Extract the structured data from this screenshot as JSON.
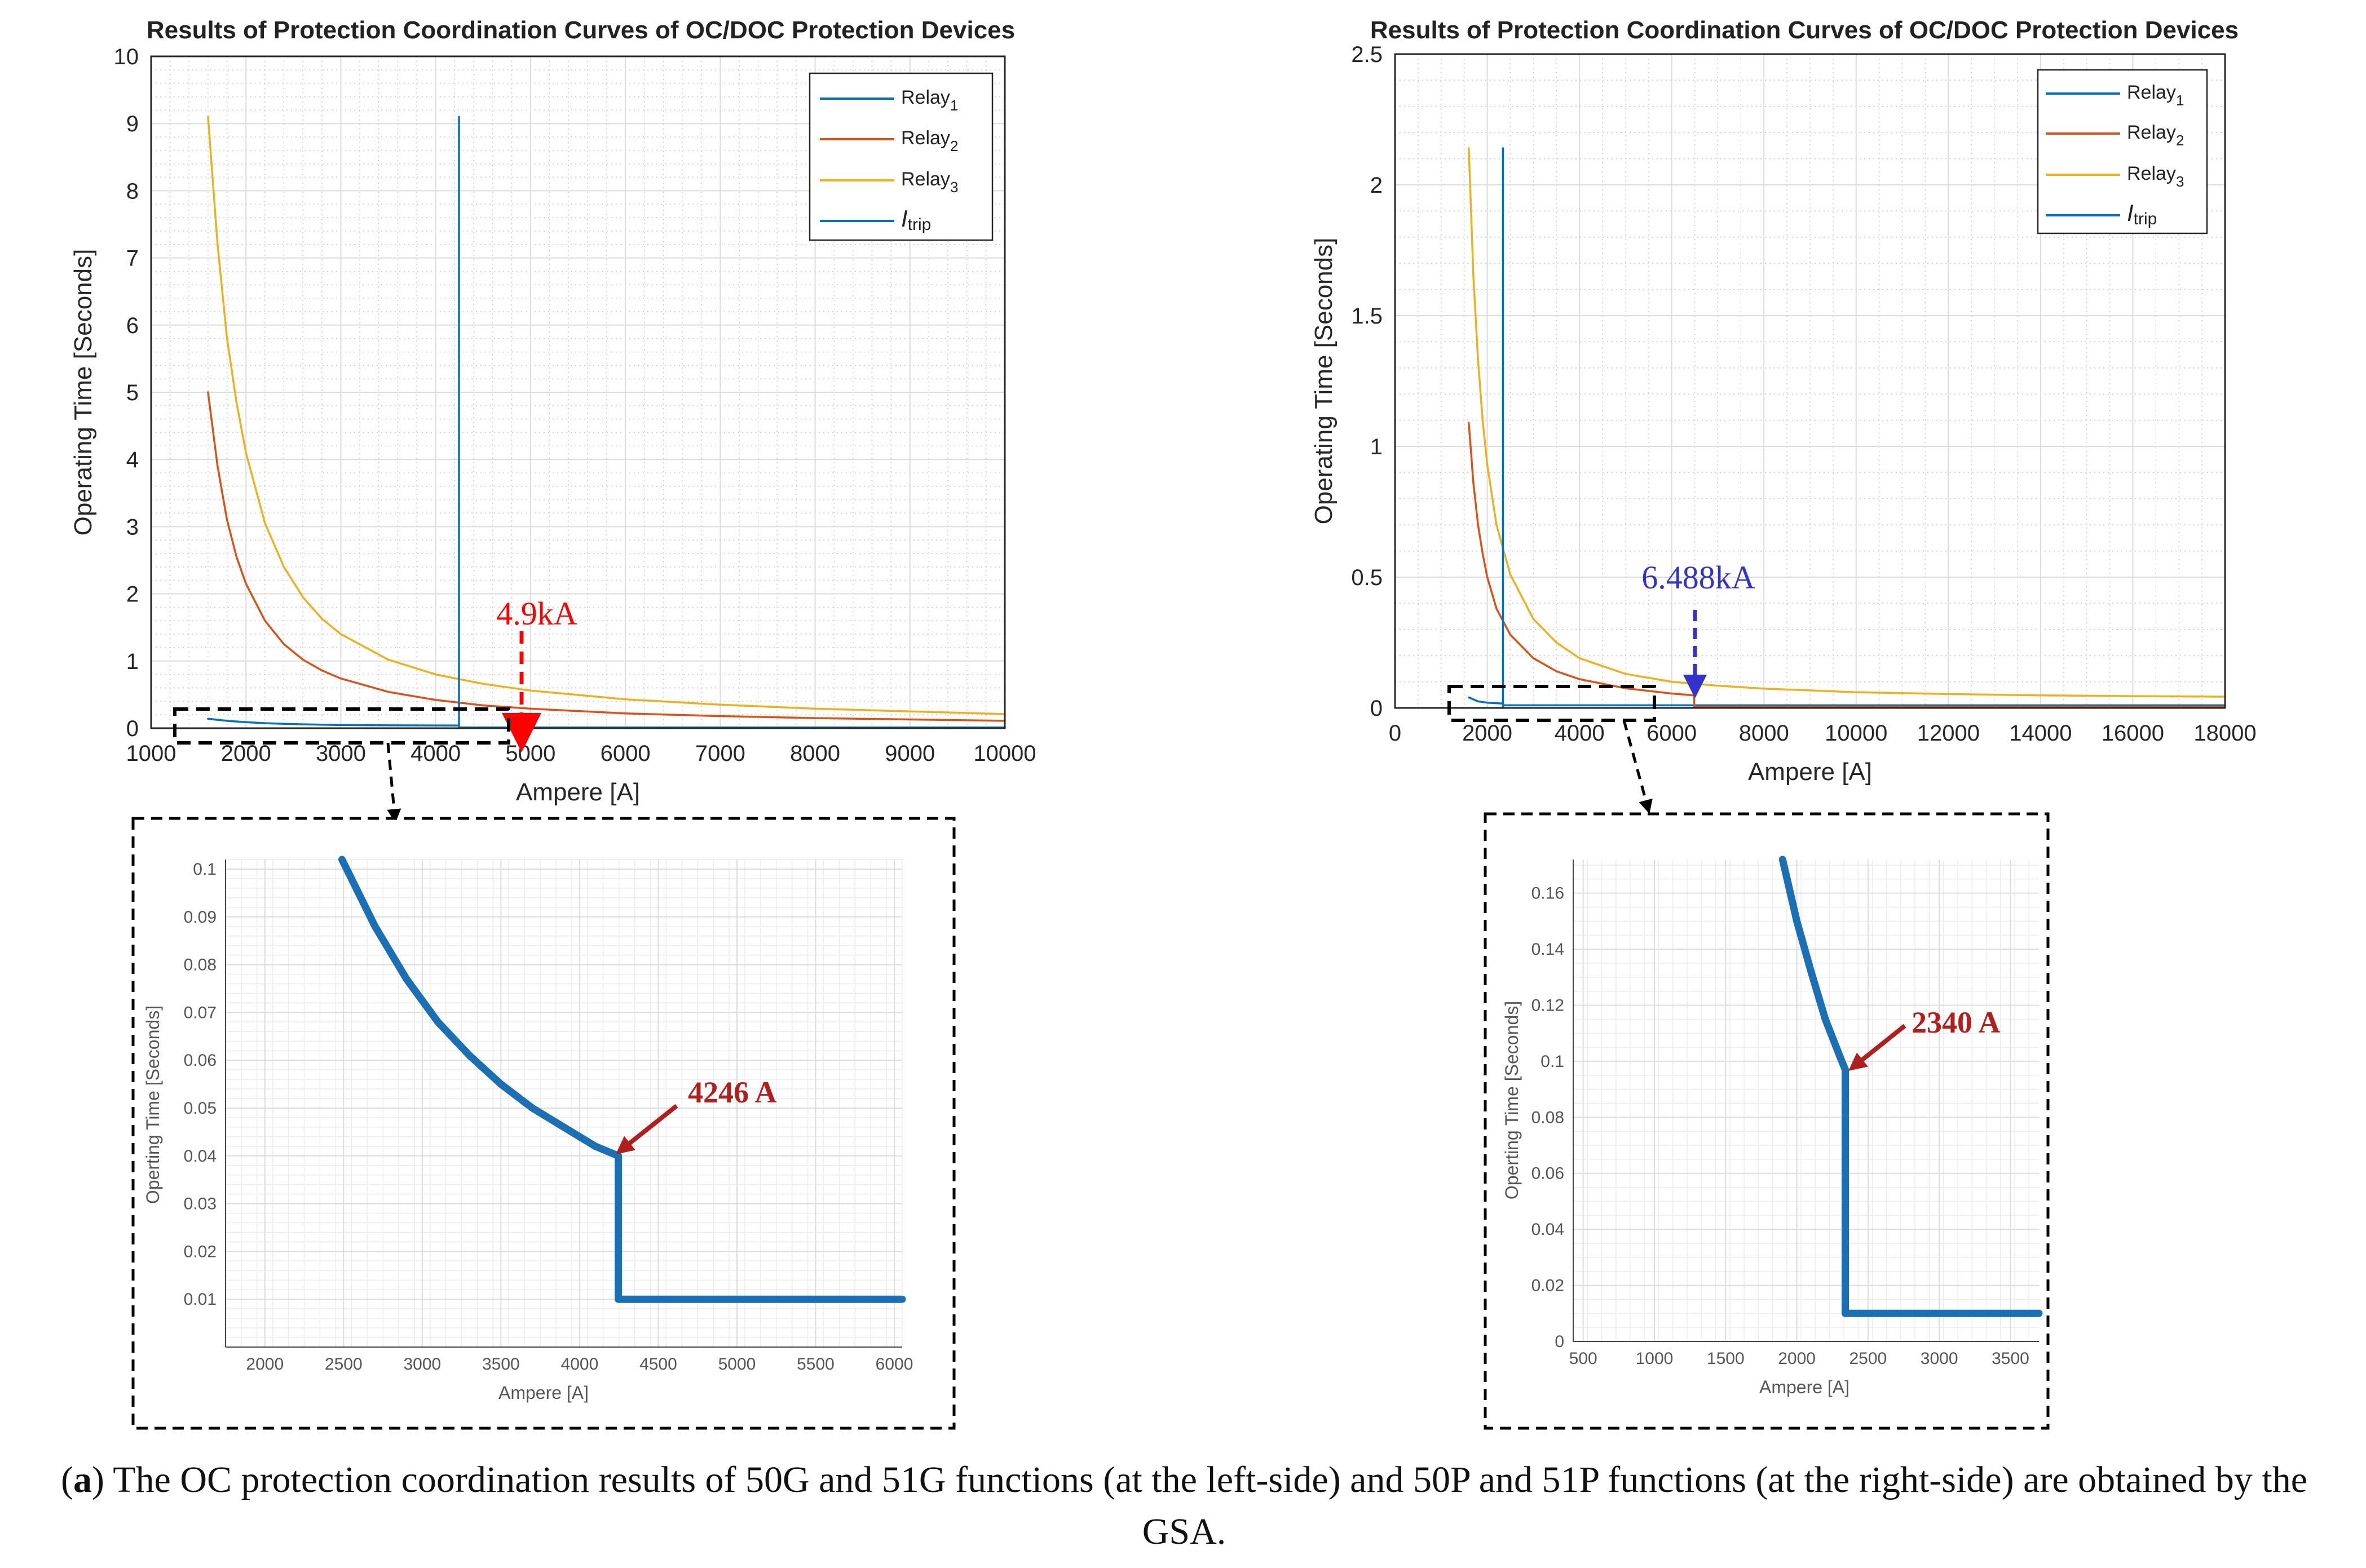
{
  "colors": {
    "relay1": "#0072BD",
    "relay2": "#D95319",
    "relay3": "#EDB120",
    "itrip": "#0072BD",
    "annotation_red": "#ff0000",
    "annotation_blue": "#3333cc",
    "zoom_curve": "#1a6fb5",
    "zoom_arrow": "#b01e1e"
  },
  "legend": {
    "relay1": {
      "base": "Relay",
      "sub": "1"
    },
    "relay2": {
      "base": "Relay",
      "sub": "2"
    },
    "relay3": {
      "base": "Relay",
      "sub": "3"
    },
    "itrip": {
      "base": "I",
      "sub": "trip"
    }
  },
  "chart_data": [
    {
      "id": "left-main",
      "type": "line",
      "title": "Results of Protection Coordination Curves of OC/DOC Protection Devices",
      "xlabel": "Ampere [A]",
      "ylabel": "Operating Time [Seconds]",
      "xlim": [
        1000,
        10000
      ],
      "ylim": [
        0,
        10
      ],
      "xticks": [
        1000,
        2000,
        3000,
        4000,
        5000,
        6000,
        7000,
        8000,
        9000,
        10000
      ],
      "yticks": [
        0,
        1,
        2,
        3,
        4,
        5,
        6,
        7,
        8,
        9,
        10
      ],
      "grid": true,
      "legend_position": "top-right",
      "series": [
        {
          "name": "Relay1",
          "x": [
            1600,
            1700,
            1800,
            1900,
            2000,
            2200,
            2400,
            2600,
            2800,
            3000,
            3500,
            4000,
            4246,
            4247,
            5000,
            6000,
            7000,
            8000,
            9000,
            10000
          ],
          "y": [
            0.14,
            0.125,
            0.11,
            0.1,
            0.09,
            0.075,
            0.065,
            0.058,
            0.052,
            0.047,
            0.043,
            0.041,
            0.04,
            0.01,
            0.01,
            0.01,
            0.01,
            0.01,
            0.01,
            0.01
          ]
        },
        {
          "name": "Relay2",
          "x": [
            1600,
            1700,
            1800,
            1900,
            2000,
            2200,
            2400,
            2600,
            2800,
            3000,
            3500,
            4000,
            4500,
            5000,
            6000,
            7000,
            8000,
            9000,
            10000
          ],
          "y": [
            5.0,
            3.9,
            3.1,
            2.55,
            2.15,
            1.6,
            1.25,
            1.02,
            0.86,
            0.74,
            0.54,
            0.42,
            0.34,
            0.29,
            0.22,
            0.18,
            0.15,
            0.13,
            0.11
          ]
        },
        {
          "name": "Relay3",
          "x": [
            1600,
            1700,
            1800,
            1900,
            2000,
            2200,
            2400,
            2600,
            2800,
            3000,
            3500,
            4000,
            4500,
            5000,
            6000,
            7000,
            8000,
            9000,
            10000
          ],
          "y": [
            9.1,
            7.2,
            5.8,
            4.85,
            4.1,
            3.05,
            2.4,
            1.95,
            1.63,
            1.4,
            1.02,
            0.8,
            0.66,
            0.56,
            0.43,
            0.35,
            0.29,
            0.25,
            0.21
          ]
        },
        {
          "name": "Itrip",
          "x": [
            4246,
            4246
          ],
          "y": [
            0,
            9.1
          ]
        }
      ],
      "annotation": {
        "text": "4.9kA",
        "x": 4900
      }
    },
    {
      "id": "right-main",
      "type": "line",
      "title": "Results of Protection Coordination Curves of OC/DOC Protection Devices",
      "xlabel": "Ampere [A]",
      "ylabel": "Operating Time [Seconds]",
      "xlim": [
        0,
        18000
      ],
      "ylim": [
        0,
        2.5
      ],
      "xticks": [
        0,
        2000,
        4000,
        6000,
        8000,
        10000,
        12000,
        14000,
        16000,
        18000
      ],
      "yticks": [
        0,
        0.5,
        1,
        1.5,
        2,
        2.5
      ],
      "grid": true,
      "legend_position": "top-right",
      "series": [
        {
          "name": "Relay1",
          "x": [
            1600,
            1800,
            2000,
            2200,
            2340,
            2341,
            4000,
            6000,
            8000,
            10000,
            12000,
            14000,
            16000,
            18000
          ],
          "y": [
            0.04,
            0.025,
            0.02,
            0.018,
            0.0165,
            0.01,
            0.01,
            0.01,
            0.01,
            0.01,
            0.01,
            0.01,
            0.01,
            0.01
          ]
        },
        {
          "name": "Relay2",
          "x": [
            1600,
            1700,
            1800,
            1900,
            2000,
            2200,
            2500,
            3000,
            3500,
            4000,
            5000,
            6000,
            6488,
            6489,
            8000,
            10000,
            12000,
            14000,
            16000,
            18000
          ],
          "y": [
            1.09,
            0.86,
            0.7,
            0.59,
            0.5,
            0.38,
            0.28,
            0.19,
            0.14,
            0.11,
            0.075,
            0.055,
            0.048,
            0.005,
            0.005,
            0.005,
            0.005,
            0.005,
            0.005,
            0.005
          ]
        },
        {
          "name": "Relay3",
          "x": [
            1600,
            1700,
            1800,
            1900,
            2000,
            2200,
            2500,
            3000,
            3500,
            4000,
            5000,
            6000,
            7000,
            8000,
            10000,
            12000,
            14000,
            16000,
            18000
          ],
          "y": [
            2.14,
            1.65,
            1.33,
            1.1,
            0.93,
            0.7,
            0.51,
            0.34,
            0.25,
            0.19,
            0.13,
            0.1,
            0.085,
            0.074,
            0.06,
            0.053,
            0.048,
            0.045,
            0.043
          ]
        },
        {
          "name": "Itrip",
          "x": [
            2340,
            2340
          ],
          "y": [
            0,
            2.14
          ]
        }
      ],
      "annotation": {
        "text": "6.488kA",
        "x": 6488
      }
    },
    {
      "id": "left-zoom",
      "type": "line",
      "xlabel": "Ampere [A]",
      "ylabel": "Operting Time [Seconds]",
      "xlim": [
        1750,
        6050
      ],
      "ylim": [
        0.0,
        0.102
      ],
      "xticks": [
        2000,
        2500,
        3000,
        3500,
        4000,
        4500,
        5000,
        5500,
        6000
      ],
      "yticks": [
        0.01,
        0.02,
        0.03,
        0.04,
        0.05,
        0.06,
        0.07,
        0.08,
        0.09,
        0.1
      ],
      "grid": true,
      "series": [
        {
          "name": "Relay1",
          "x": [
            2490,
            2700,
            2900,
            3100,
            3300,
            3500,
            3700,
            3900,
            4100,
            4246,
            4246,
            4300,
            5000,
            6050
          ],
          "y": [
            0.102,
            0.088,
            0.077,
            0.068,
            0.061,
            0.055,
            0.05,
            0.046,
            0.042,
            0.04,
            0.01,
            0.01,
            0.01,
            0.01
          ]
        }
      ],
      "annotation": {
        "text": "4246 A",
        "x": 4246,
        "y": 0.04
      }
    },
    {
      "id": "right-zoom",
      "type": "line",
      "xlabel": "Ampere [A]",
      "ylabel": "Operting Time [Seconds]",
      "xlim": [
        430,
        3700
      ],
      "ylim": [
        0,
        0.172
      ],
      "xticks": [
        500,
        1000,
        1500,
        2000,
        2500,
        3000,
        3500
      ],
      "yticks": [
        0,
        0.02,
        0.04,
        0.06,
        0.08,
        0.1,
        0.12,
        0.14,
        0.16
      ],
      "grid": true,
      "series": [
        {
          "name": "Relay1",
          "x": [
            1900,
            2000,
            2100,
            2200,
            2300,
            2340,
            2340,
            2400,
            3000,
            3700
          ],
          "y": [
            0.172,
            0.15,
            0.132,
            0.115,
            0.102,
            0.097,
            0.01,
            0.01,
            0.01,
            0.01
          ]
        }
      ],
      "annotation": {
        "text": "2340 A",
        "x": 2340,
        "y": 0.097
      }
    }
  ],
  "caption": {
    "label": "a",
    "text": "The OC protection coordination results of 50G and 51G functions (at the left-side) and 50P and 51P functions (at the right-side) are obtained by the GSA."
  }
}
